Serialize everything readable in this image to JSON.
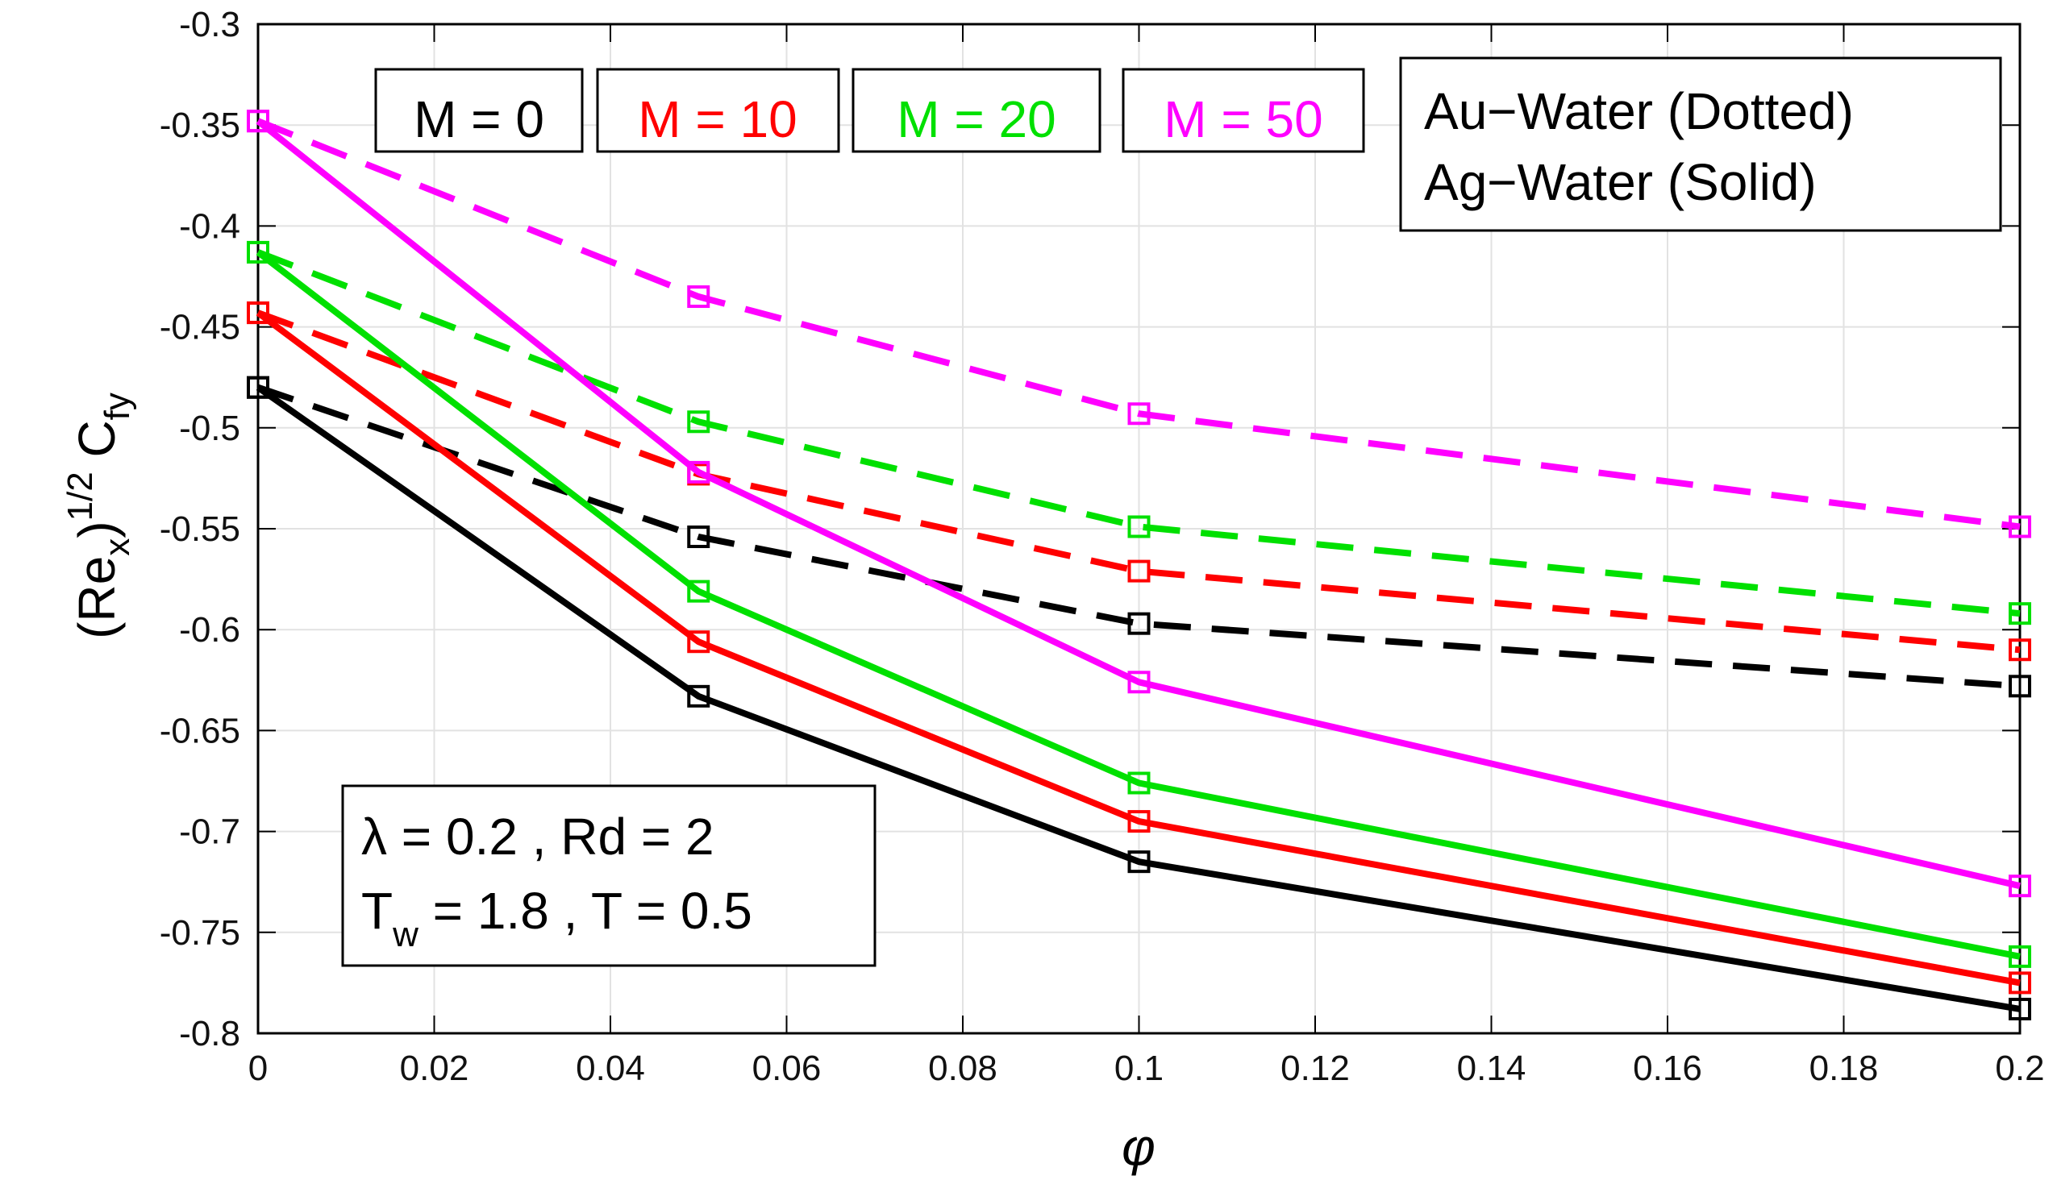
{
  "chart_data": {
    "type": "line",
    "title": "",
    "xlabel": "φ",
    "ylabel": {
      "main": "(Re",
      "sub1": "x",
      "mid": ")",
      "sup": "1/2",
      "c": " C",
      "sub2": "fy"
    },
    "xlim": [
      0,
      0.2
    ],
    "ylim": [
      -0.8,
      -0.3
    ],
    "grid": true,
    "x": [
      0,
      0.05,
      0.1,
      0.2
    ],
    "xticks": [
      0,
      0.02,
      0.04,
      0.06,
      0.08,
      0.1,
      0.12,
      0.14,
      0.16,
      0.18,
      0.2
    ],
    "xtick_labels": [
      "0",
      "0.02",
      "0.04",
      "0.06",
      "0.08",
      "0.1",
      "0.12",
      "0.14",
      "0.16",
      "0.18",
      "0.2"
    ],
    "yticks": [
      -0.8,
      -0.75,
      -0.7,
      -0.65,
      -0.6,
      -0.55,
      -0.5,
      -0.45,
      -0.4,
      -0.35,
      -0.3
    ],
    "ytick_labels": [
      "-0.8",
      "-0.75",
      "-0.7",
      "-0.65",
      "-0.6",
      "-0.55",
      "-0.5",
      "-0.45",
      "-0.4",
      "-0.35",
      "-0.3"
    ],
    "series": [
      {
        "name": "M = 0 Au-Water",
        "M": "M = 0",
        "fluid": "Au-Water",
        "style": "dashed",
        "color": "#000000",
        "values": [
          -0.48,
          -0.554,
          -0.597,
          -0.628
        ]
      },
      {
        "name": "M = 10 Au-Water",
        "M": "M = 10",
        "fluid": "Au-Water",
        "style": "dashed",
        "color": "#ff0000",
        "values": [
          -0.443,
          -0.523,
          -0.571,
          -0.61
        ]
      },
      {
        "name": "M = 20 Au-Water",
        "M": "M = 20",
        "fluid": "Au-Water",
        "style": "dashed",
        "color": "#00e000",
        "values": [
          -0.413,
          -0.497,
          -0.549,
          -0.592
        ]
      },
      {
        "name": "M = 50 Au-Water",
        "M": "M = 50",
        "fluid": "Au-Water",
        "style": "dashed",
        "color": "#ff00ff",
        "values": [
          -0.348,
          -0.435,
          -0.493,
          -0.549
        ]
      },
      {
        "name": "M = 0 Ag-Water",
        "M": "M = 0",
        "fluid": "Ag-Water",
        "style": "solid",
        "color": "#000000",
        "values": [
          -0.48,
          -0.633,
          -0.715,
          -0.788
        ]
      },
      {
        "name": "M = 10 Ag-Water",
        "M": "M = 10",
        "fluid": "Ag-Water",
        "style": "solid",
        "color": "#ff0000",
        "values": [
          -0.443,
          -0.606,
          -0.695,
          -0.775
        ]
      },
      {
        "name": "M = 20 Ag-Water",
        "M": "M = 20",
        "fluid": "Ag-Water",
        "style": "solid",
        "color": "#00e000",
        "values": [
          -0.413,
          -0.581,
          -0.676,
          -0.762
        ]
      },
      {
        "name": "M = 50 Ag-Water",
        "M": "M = 50",
        "fluid": "Ag-Water",
        "style": "solid",
        "color": "#ff00ff",
        "values": [
          -0.348,
          -0.522,
          -0.626,
          -0.727
        ]
      }
    ],
    "legend_m": [
      {
        "label": "M = 0",
        "color": "#000000"
      },
      {
        "label": "M = 10",
        "color": "#ff0000"
      },
      {
        "label": "M = 20",
        "color": "#00e000"
      },
      {
        "label": "M = 50",
        "color": "#ff00ff"
      }
    ],
    "legend_fluid": [
      "Au−Water (Dotted)",
      "Ag−Water (Solid)"
    ],
    "params": {
      "line1": "λ = 0.2 , Rd = 2",
      "line2_t": "T",
      "line2_sub": "w",
      "line2_rest": " = 1.8 , T = 0.5"
    }
  }
}
